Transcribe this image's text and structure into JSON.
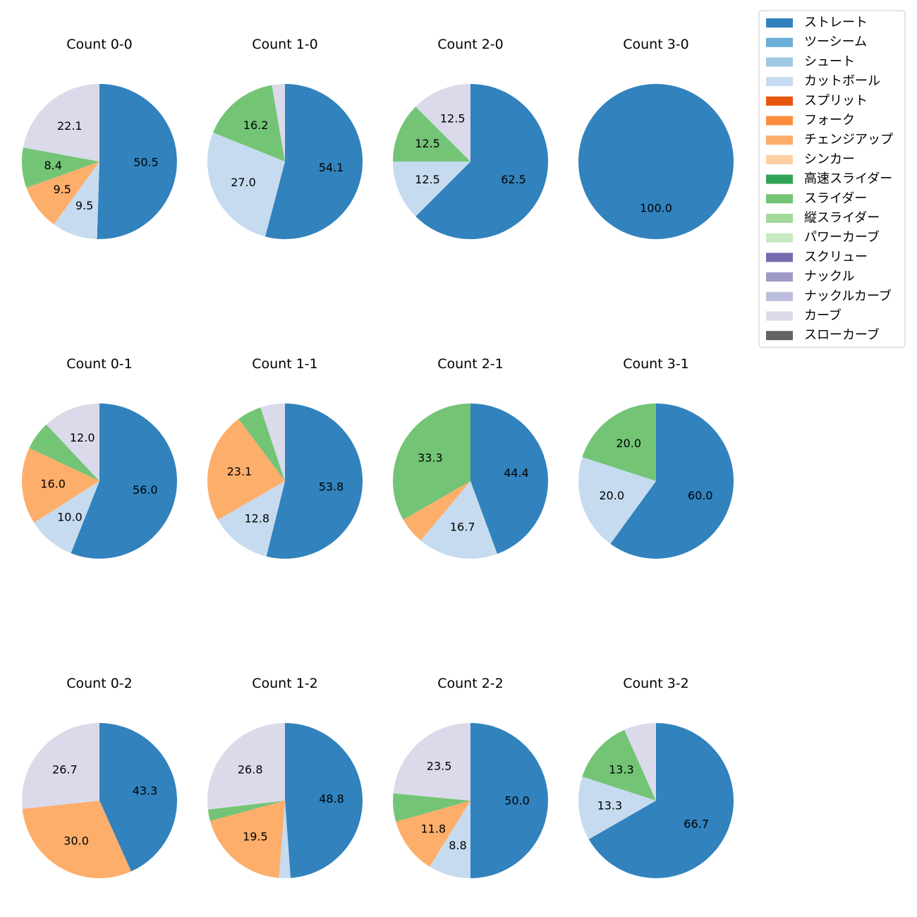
{
  "chart_data": {
    "type": "pie",
    "start_angle_deg": 90,
    "direction": "clockwise",
    "label_format": "one decimal percent, labels shown only for slices ≥ 8%",
    "categories": [
      {
        "name": "ストレート",
        "color": "#3182bd"
      },
      {
        "name": "ツーシーム",
        "color": "#6baed6"
      },
      {
        "name": "シュート",
        "color": "#9ecae1"
      },
      {
        "name": "カットボール",
        "color": "#c6dbef"
      },
      {
        "name": "スプリット",
        "color": "#e6550d"
      },
      {
        "name": "フォーク",
        "color": "#fd8d3c"
      },
      {
        "name": "チェンジアップ",
        "color": "#fdae6b"
      },
      {
        "name": "シンカー",
        "color": "#fdd0a2"
      },
      {
        "name": "高速スライダー",
        "color": "#31a354"
      },
      {
        "name": "スライダー",
        "color": "#74c476"
      },
      {
        "name": "縦スライダー",
        "color": "#a1d99b"
      },
      {
        "name": "パワーカーブ",
        "color": "#c7e9c0"
      },
      {
        "name": "スクリュー",
        "color": "#756bb1"
      },
      {
        "name": "ナックル",
        "color": "#9e9ac8"
      },
      {
        "name": "ナックルカーブ",
        "color": "#bcbddc"
      },
      {
        "name": "カーブ",
        "color": "#dadaeb"
      },
      {
        "name": "スローカーブ",
        "color": "#636363"
      }
    ],
    "pies": [
      {
        "title": "Count 0-0",
        "slices": [
          {
            "category": "ストレート",
            "value": 50.5
          },
          {
            "category": "カットボール",
            "value": 9.5
          },
          {
            "category": "チェンジアップ",
            "value": 9.5
          },
          {
            "category": "スライダー",
            "value": 8.4
          },
          {
            "category": "カーブ",
            "value": 22.1
          }
        ]
      },
      {
        "title": "Count 1-0",
        "slices": [
          {
            "category": "ストレート",
            "value": 54.1
          },
          {
            "category": "カットボール",
            "value": 27.0
          },
          {
            "category": "スライダー",
            "value": 16.2
          },
          {
            "category": "カーブ",
            "value": 2.7
          }
        ]
      },
      {
        "title": "Count 2-0",
        "slices": [
          {
            "category": "ストレート",
            "value": 62.5
          },
          {
            "category": "カットボール",
            "value": 12.5
          },
          {
            "category": "スライダー",
            "value": 12.5
          },
          {
            "category": "カーブ",
            "value": 12.5
          }
        ]
      },
      {
        "title": "Count 3-0",
        "slices": [
          {
            "category": "ストレート",
            "value": 100.0
          }
        ]
      },
      {
        "title": "Count 0-1",
        "slices": [
          {
            "category": "ストレート",
            "value": 56.0
          },
          {
            "category": "カットボール",
            "value": 10.0
          },
          {
            "category": "チェンジアップ",
            "value": 16.0
          },
          {
            "category": "スライダー",
            "value": 6.0
          },
          {
            "category": "カーブ",
            "value": 12.0
          }
        ]
      },
      {
        "title": "Count 1-1",
        "slices": [
          {
            "category": "ストレート",
            "value": 53.8
          },
          {
            "category": "カットボール",
            "value": 12.8
          },
          {
            "category": "チェンジアップ",
            "value": 23.1
          },
          {
            "category": "スライダー",
            "value": 5.1
          },
          {
            "category": "カーブ",
            "value": 5.1
          }
        ]
      },
      {
        "title": "Count 2-1",
        "slices": [
          {
            "category": "ストレート",
            "value": 44.4
          },
          {
            "category": "カットボール",
            "value": 16.7
          },
          {
            "category": "チェンジアップ",
            "value": 5.6
          },
          {
            "category": "スライダー",
            "value": 33.3
          }
        ]
      },
      {
        "title": "Count 3-1",
        "slices": [
          {
            "category": "ストレート",
            "value": 60.0
          },
          {
            "category": "カットボール",
            "value": 20.0
          },
          {
            "category": "スライダー",
            "value": 20.0
          }
        ]
      },
      {
        "title": "Count 0-2",
        "slices": [
          {
            "category": "ストレート",
            "value": 43.3
          },
          {
            "category": "チェンジアップ",
            "value": 30.0
          },
          {
            "category": "カーブ",
            "value": 26.7
          }
        ]
      },
      {
        "title": "Count 1-2",
        "slices": [
          {
            "category": "ストレート",
            "value": 48.8
          },
          {
            "category": "カットボール",
            "value": 2.4
          },
          {
            "category": "チェンジアップ",
            "value": 19.5
          },
          {
            "category": "スライダー",
            "value": 2.4
          },
          {
            "category": "カーブ",
            "value": 26.8
          }
        ]
      },
      {
        "title": "Count 2-2",
        "slices": [
          {
            "category": "ストレート",
            "value": 50.0
          },
          {
            "category": "カットボール",
            "value": 8.8
          },
          {
            "category": "チェンジアップ",
            "value": 11.8
          },
          {
            "category": "スライダー",
            "value": 5.9
          },
          {
            "category": "カーブ",
            "value": 23.5
          }
        ]
      },
      {
        "title": "Count 3-2",
        "slices": [
          {
            "category": "ストレート",
            "value": 66.7
          },
          {
            "category": "カットボール",
            "value": 13.3
          },
          {
            "category": "スライダー",
            "value": 13.3
          },
          {
            "category": "カーブ",
            "value": 6.7
          }
        ]
      }
    ]
  }
}
